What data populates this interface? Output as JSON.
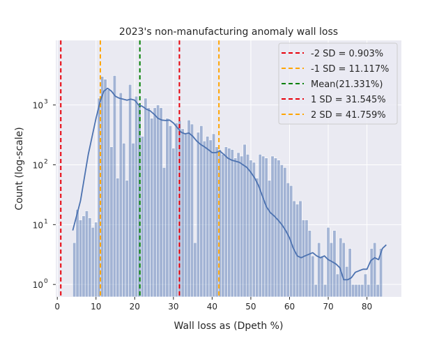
{
  "chart_data": {
    "type": "bar",
    "title": "2023's non-manufacturing anomaly wall loss",
    "xlabel": "Wall loss as (Dpeth %)",
    "ylabel": "Count (log-scale)",
    "yscale": "log",
    "xlim": [
      -0.4,
      88.9
    ],
    "ylim": [
      0.62,
      12000
    ],
    "xticks": [
      0,
      10,
      20,
      30,
      40,
      50,
      60,
      70,
      80
    ],
    "yticks": [
      1,
      10,
      100,
      1000
    ],
    "ytick_labels": [
      [
        "10",
        "0"
      ],
      [
        "10",
        "1"
      ],
      [
        "10",
        "2"
      ],
      [
        "10",
        "3"
      ]
    ],
    "grid": true,
    "legend_position": "top-right",
    "histogram": {
      "bin_start": 4,
      "bin_width": 0.8,
      "counts": [
        5,
        18,
        12,
        14,
        17,
        13,
        9,
        11,
        1300,
        3000,
        2700,
        1800,
        200,
        3100,
        60,
        1600,
        230,
        55,
        2200,
        230,
        1400,
        1000,
        300,
        1300,
        900,
        600,
        900,
        1000,
        900,
        90,
        600,
        450,
        190,
        500,
        550,
        400,
        330,
        560,
        480,
        5,
        350,
        450,
        250,
        300,
        260,
        330,
        200,
        180,
        150,
        200,
        190,
        180,
        130,
        160,
        140,
        220,
        150,
        120,
        110,
        60,
        150,
        140,
        130,
        55,
        140,
        130,
        120,
        100,
        90,
        50,
        45,
        25,
        22,
        25,
        12,
        12,
        8,
        3,
        1,
        5,
        3,
        1,
        9,
        5,
        8,
        1.5,
        6,
        5,
        2,
        4,
        1,
        1,
        1,
        1,
        1.5,
        1,
        4,
        5,
        1,
        4
      ]
    },
    "kde": {
      "x": [
        4,
        6,
        8,
        10,
        11,
        12,
        13,
        14,
        15,
        16,
        17,
        18,
        19,
        20,
        21,
        22,
        23,
        24,
        25,
        26,
        27,
        28,
        29,
        30,
        31,
        32,
        33,
        34,
        35,
        36,
        37,
        38,
        39,
        40,
        41,
        42,
        43,
        44,
        45,
        46,
        47,
        48,
        49,
        50,
        51,
        52,
        53,
        54,
        55,
        56,
        57,
        58,
        59,
        60,
        61,
        62,
        63,
        64,
        65,
        66,
        67,
        68,
        69,
        70,
        71,
        72,
        73,
        74,
        75,
        76,
        77,
        78,
        79,
        80,
        81,
        82,
        83,
        84,
        85
      ],
      "y": [
        8,
        25,
        150,
        600,
        1100,
        1700,
        1900,
        1700,
        1400,
        1300,
        1250,
        1200,
        1250,
        1200,
        1000,
        950,
        850,
        800,
        700,
        600,
        560,
        550,
        560,
        500,
        420,
        350,
        330,
        340,
        300,
        250,
        220,
        200,
        180,
        160,
        160,
        170,
        150,
        130,
        120,
        115,
        110,
        100,
        90,
        75,
        60,
        45,
        30,
        20,
        16,
        14,
        12,
        10,
        8,
        6,
        4,
        3,
        2.8,
        3,
        3.2,
        3.4,
        3,
        2.8,
        3,
        2.6,
        2.4,
        2.2,
        1.9,
        1.2,
        1.2,
        1.3,
        1.6,
        1.7,
        1.8,
        1.8,
        2.5,
        2.8,
        2.6,
        4,
        4.6
      ]
    },
    "lines": [
      {
        "label": "-2 SD = 0.903%",
        "x": 0.903,
        "color": "#e8000b"
      },
      {
        "label": "-1 SD = 11.117%",
        "x": 11.117,
        "color": "#ffa500"
      },
      {
        "label": "Mean(21.331%)",
        "x": 21.331,
        "color": "#008000"
      },
      {
        "label": "1 SD = 31.545%",
        "x": 31.545,
        "color": "#e8000b"
      },
      {
        "label": "2 SD = 41.759%",
        "x": 41.759,
        "color": "#ffa500"
      }
    ],
    "colors": {
      "bar_fill": "#4c72b0",
      "bar_opacity": 0.45,
      "kde_line": "#4c72b0",
      "axes_bg": "#eaeaf2",
      "grid": "#ffffff"
    }
  }
}
